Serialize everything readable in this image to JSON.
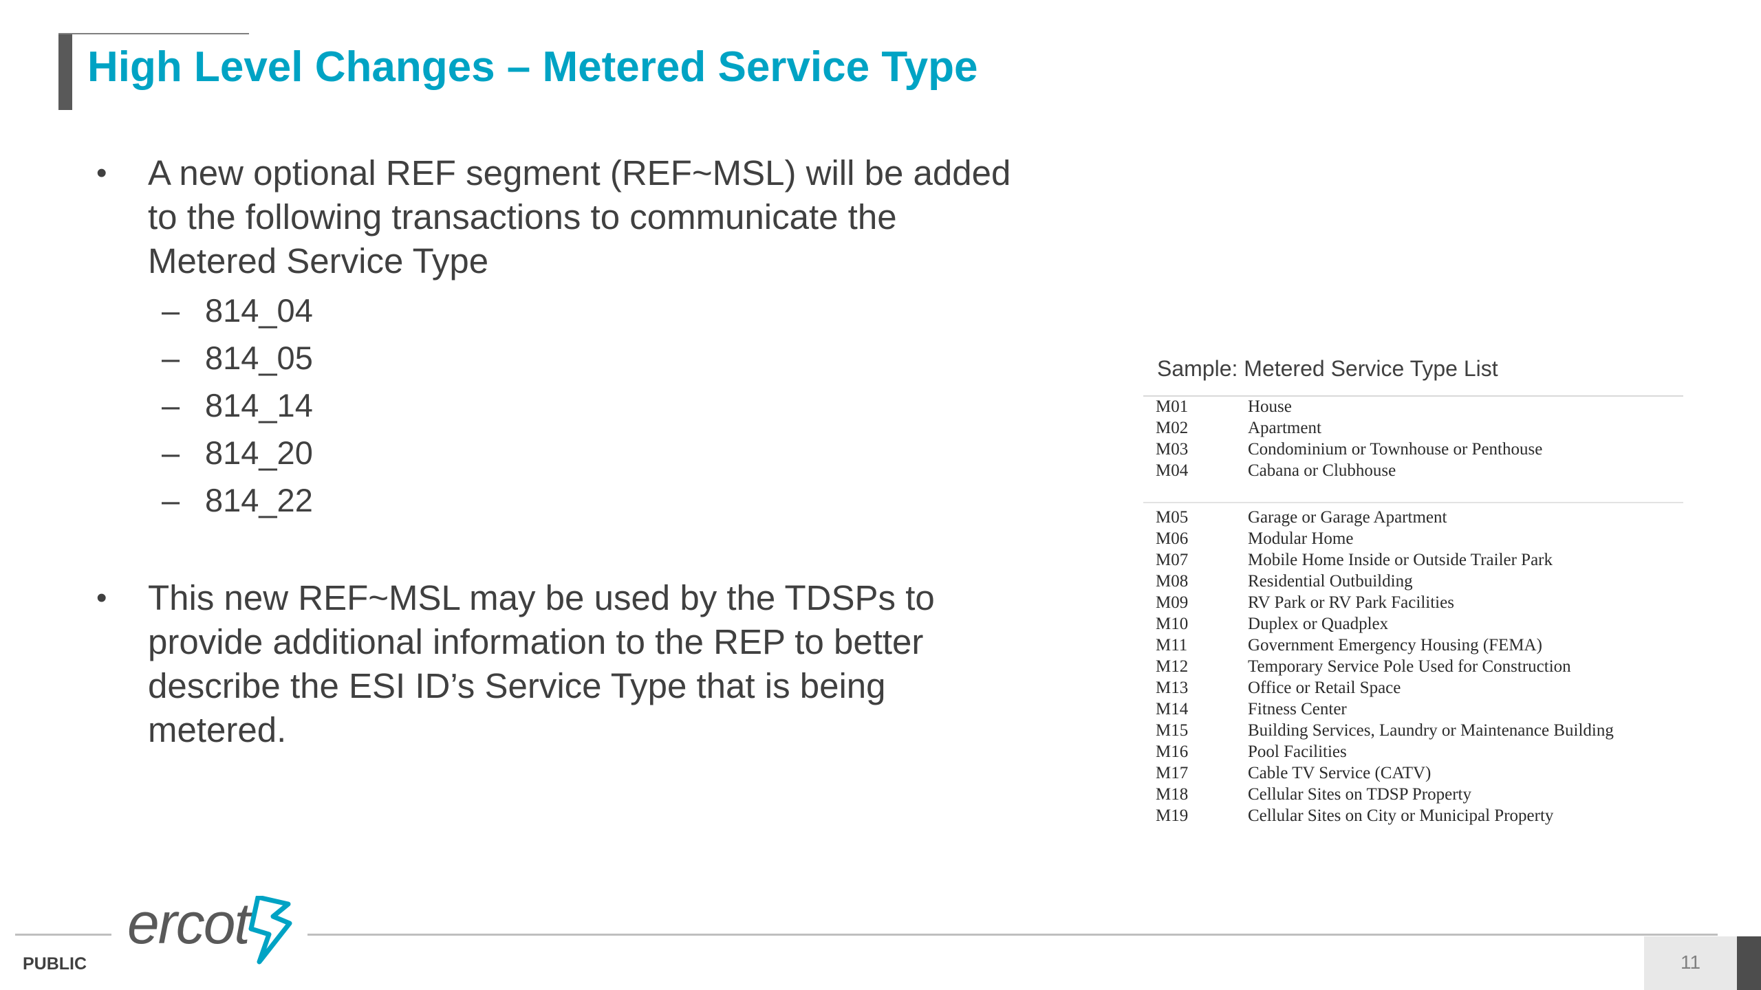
{
  "title": "High Level Changes – Metered Service Type",
  "bullets": [
    {
      "marker": "•",
      "text": "A new optional REF segment (REF~MSL) will be added to the following transactions to communicate the Metered Service Type",
      "sub": [
        "814_04",
        "814_05",
        "814_14",
        "814_20",
        "814_22"
      ]
    },
    {
      "marker": "•",
      "text": "This new REF~MSL may be used by the TDSPs to provide additional information to the REP to better describe the ESI ID’s Service Type that is being metered."
    }
  ],
  "sub_marker": "–",
  "sample": {
    "caption": "Sample: Metered Service Type List",
    "group1": [
      {
        "code": "M01",
        "desc": "House"
      },
      {
        "code": "M02",
        "desc": "Apartment"
      },
      {
        "code": "M03",
        "desc": "Condominium or Townhouse or Penthouse"
      },
      {
        "code": "M04",
        "desc": "Cabana or Clubhouse"
      }
    ],
    "group2": [
      {
        "code": "M05",
        "desc": "Garage or Garage Apartment"
      },
      {
        "code": "M06",
        "desc": "Modular Home"
      },
      {
        "code": "M07",
        "desc": "Mobile Home Inside or Outside Trailer Park"
      },
      {
        "code": "M08",
        "desc": "Residential Outbuilding"
      },
      {
        "code": "M09",
        "desc": "RV Park or RV Park Facilities"
      },
      {
        "code": "M10",
        "desc": "Duplex or Quadplex"
      },
      {
        "code": "M11",
        "desc": "Government Emergency Housing (FEMA)"
      },
      {
        "code": "M12",
        "desc": "Temporary Service Pole Used for Construction"
      },
      {
        "code": "M13",
        "desc": "Office or Retail Space"
      },
      {
        "code": "M14",
        "desc": "Fitness Center"
      },
      {
        "code": "M15",
        "desc": "Building Services, Laundry or Maintenance Building"
      },
      {
        "code": "M16",
        "desc": "Pool Facilities"
      },
      {
        "code": "M17",
        "desc": "Cable TV Service (CATV)"
      },
      {
        "code": "M18",
        "desc": "Cellular Sites on TDSP Property"
      },
      {
        "code": "M19",
        "desc": "Cellular Sites on City or Municipal Property"
      }
    ]
  },
  "footer": {
    "logo_text": "ercot",
    "classification": "PUBLIC",
    "page_number": "11"
  },
  "colors": {
    "title": "#00a3c4",
    "body_text": "#404040",
    "accent_bar": "#595959"
  }
}
